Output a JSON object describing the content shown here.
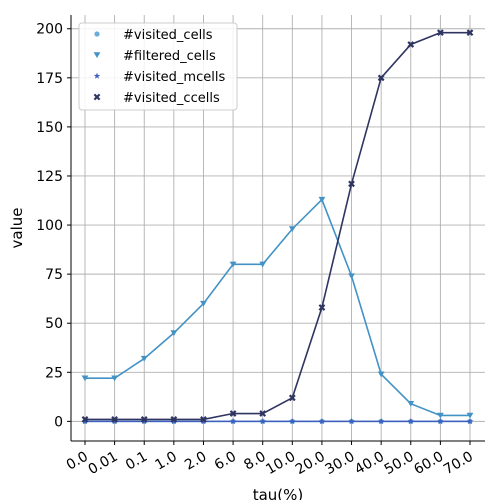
{
  "chart_data": {
    "type": "line",
    "title": "",
    "xlabel": "tau(%)",
    "ylabel": "value",
    "categories": [
      "0.0",
      "0.01",
      "0.1",
      "1.0",
      "2.0",
      "6.0",
      "8.0",
      "10.0",
      "20.0",
      "30.0",
      "40.0",
      "50.0",
      "60.0",
      "70.0"
    ],
    "ylim": [
      -10,
      207
    ],
    "yticks": [
      0,
      25,
      50,
      75,
      100,
      125,
      150,
      175,
      200
    ],
    "grid": true,
    "legend_position": "top-left",
    "series": [
      {
        "name": "#visited_cells",
        "marker": "circle",
        "color": "#6baed6",
        "values": [
          0,
          0,
          0,
          0,
          0,
          0,
          0,
          0,
          0,
          0,
          0,
          0,
          0,
          0
        ]
      },
      {
        "name": "#filtered_cells",
        "marker": "triangle-down",
        "color": "#4292c6",
        "values": [
          22,
          22,
          32,
          45,
          60,
          80,
          80,
          98,
          113,
          74,
          24,
          9,
          3,
          3
        ]
      },
      {
        "name": "#visited_mcells",
        "marker": "star",
        "color": "#3f5fbf",
        "values": [
          0,
          0,
          0,
          0,
          0,
          0,
          0,
          0,
          0,
          0,
          0,
          0,
          0,
          0
        ]
      },
      {
        "name": "#visited_ccells",
        "marker": "x",
        "color": "#2f3561",
        "values": [
          1,
          1,
          1,
          1,
          1,
          4,
          4,
          12,
          58,
          121,
          175,
          192,
          198,
          198
        ]
      }
    ]
  }
}
